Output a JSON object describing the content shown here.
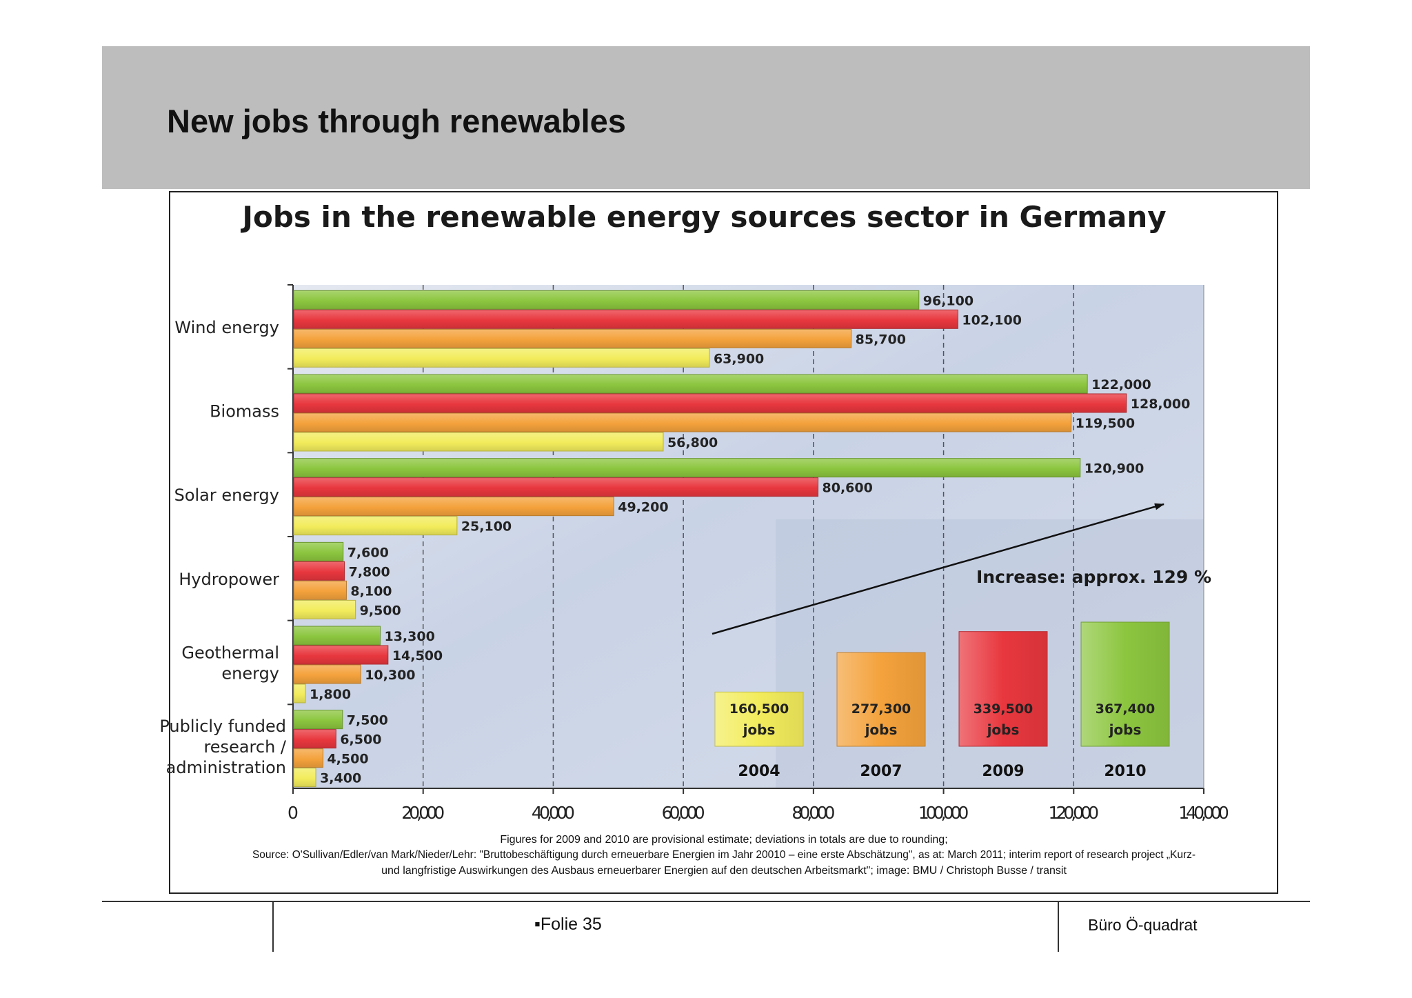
{
  "slide": {
    "title": "New jobs through renewables",
    "footer_left": "▪Folie 35",
    "footer_right": "Büro Ö-quadrat"
  },
  "chart_data": {
    "type": "bar",
    "orientation": "horizontal",
    "title": "Jobs in the renewable energy sources sector in Germany",
    "categories": [
      "Wind energy",
      "Biomass",
      "Solar energy",
      "Hydropower",
      "Geothermal energy",
      "Publicly funded research / administration"
    ],
    "category_lines": [
      [
        "Wind energy"
      ],
      [
        "Biomass"
      ],
      [
        "Solar energy"
      ],
      [
        "Hydropower"
      ],
      [
        "Geothermal",
        "energy"
      ],
      [
        "Publicly funded",
        "research /",
        "administration"
      ]
    ],
    "series": [
      {
        "name": "2010",
        "color": "#8cc63f",
        "values": [
          96100,
          122000,
          120900,
          7600,
          13300,
          7500
        ],
        "labels": [
          "96,100",
          "122,000",
          "120,900",
          "7,600",
          "13,300",
          "7,500"
        ]
      },
      {
        "name": "2009",
        "color": "#e8373e",
        "values": [
          102100,
          128000,
          80600,
          7800,
          14500,
          6500
        ],
        "labels": [
          "102,100",
          "128,000",
          "80,600",
          "7,800",
          "14,500",
          "6,500"
        ]
      },
      {
        "name": "2007",
        "color": "#f4a23c",
        "values": [
          85700,
          119500,
          49200,
          8100,
          10300,
          4500
        ],
        "labels": [
          "85,700",
          "119,500",
          "49,200",
          "8,100",
          "10,300",
          "4,500"
        ]
      },
      {
        "name": "2004",
        "color": "#f2ec5c",
        "values": [
          63900,
          56800,
          25100,
          9500,
          1800,
          3400
        ],
        "labels": [
          "63,900",
          "56,800",
          "25,100",
          "9,500",
          "1,800",
          "3,400"
        ]
      }
    ],
    "xlim": [
      0,
      140000
    ],
    "xticks": [
      0,
      20000,
      40000,
      60000,
      80000,
      100000,
      120000,
      140000
    ],
    "xtick_labels": [
      "0",
      "20,000",
      "40,000",
      "60,000",
      "80,000",
      "100,000",
      "120,000",
      "140,000"
    ],
    "grid": "vertical dashed",
    "totals": [
      {
        "year": "2004",
        "value": 160500,
        "label_value": "160,500",
        "label_unit": "jobs",
        "color": "#f2ec5c"
      },
      {
        "year": "2007",
        "value": 277300,
        "label_value": "277,300",
        "label_unit": "jobs",
        "color": "#f4a23c"
      },
      {
        "year": "2009",
        "value": 339500,
        "label_value": "339,500",
        "label_unit": "jobs",
        "color": "#e8373e"
      },
      {
        "year": "2010",
        "value": 367400,
        "label_value": "367,400",
        "label_unit": "jobs",
        "color": "#8cc63f"
      }
    ],
    "annotation": "Increase: approx. 129 %",
    "footnote_lines": [
      "Figures for 2009 and 2010 are provisional estimate; deviations in totals are due to rounding;",
      "Source: O'Sullivan/Edler/van Mark/Nieder/Lehr: \"Bruttobeschäftigung durch erneuerbare Energien im Jahr 20010 – eine erste Abschätzung\", as at: March 2011; interim report of research project „Kurz-",
      "und langfristige Auswirkungen des Ausbaus erneuerbarer Energien auf den deutschen Arbeitsmarkt\"; image: BMU / Christoph Busse / transit"
    ]
  }
}
